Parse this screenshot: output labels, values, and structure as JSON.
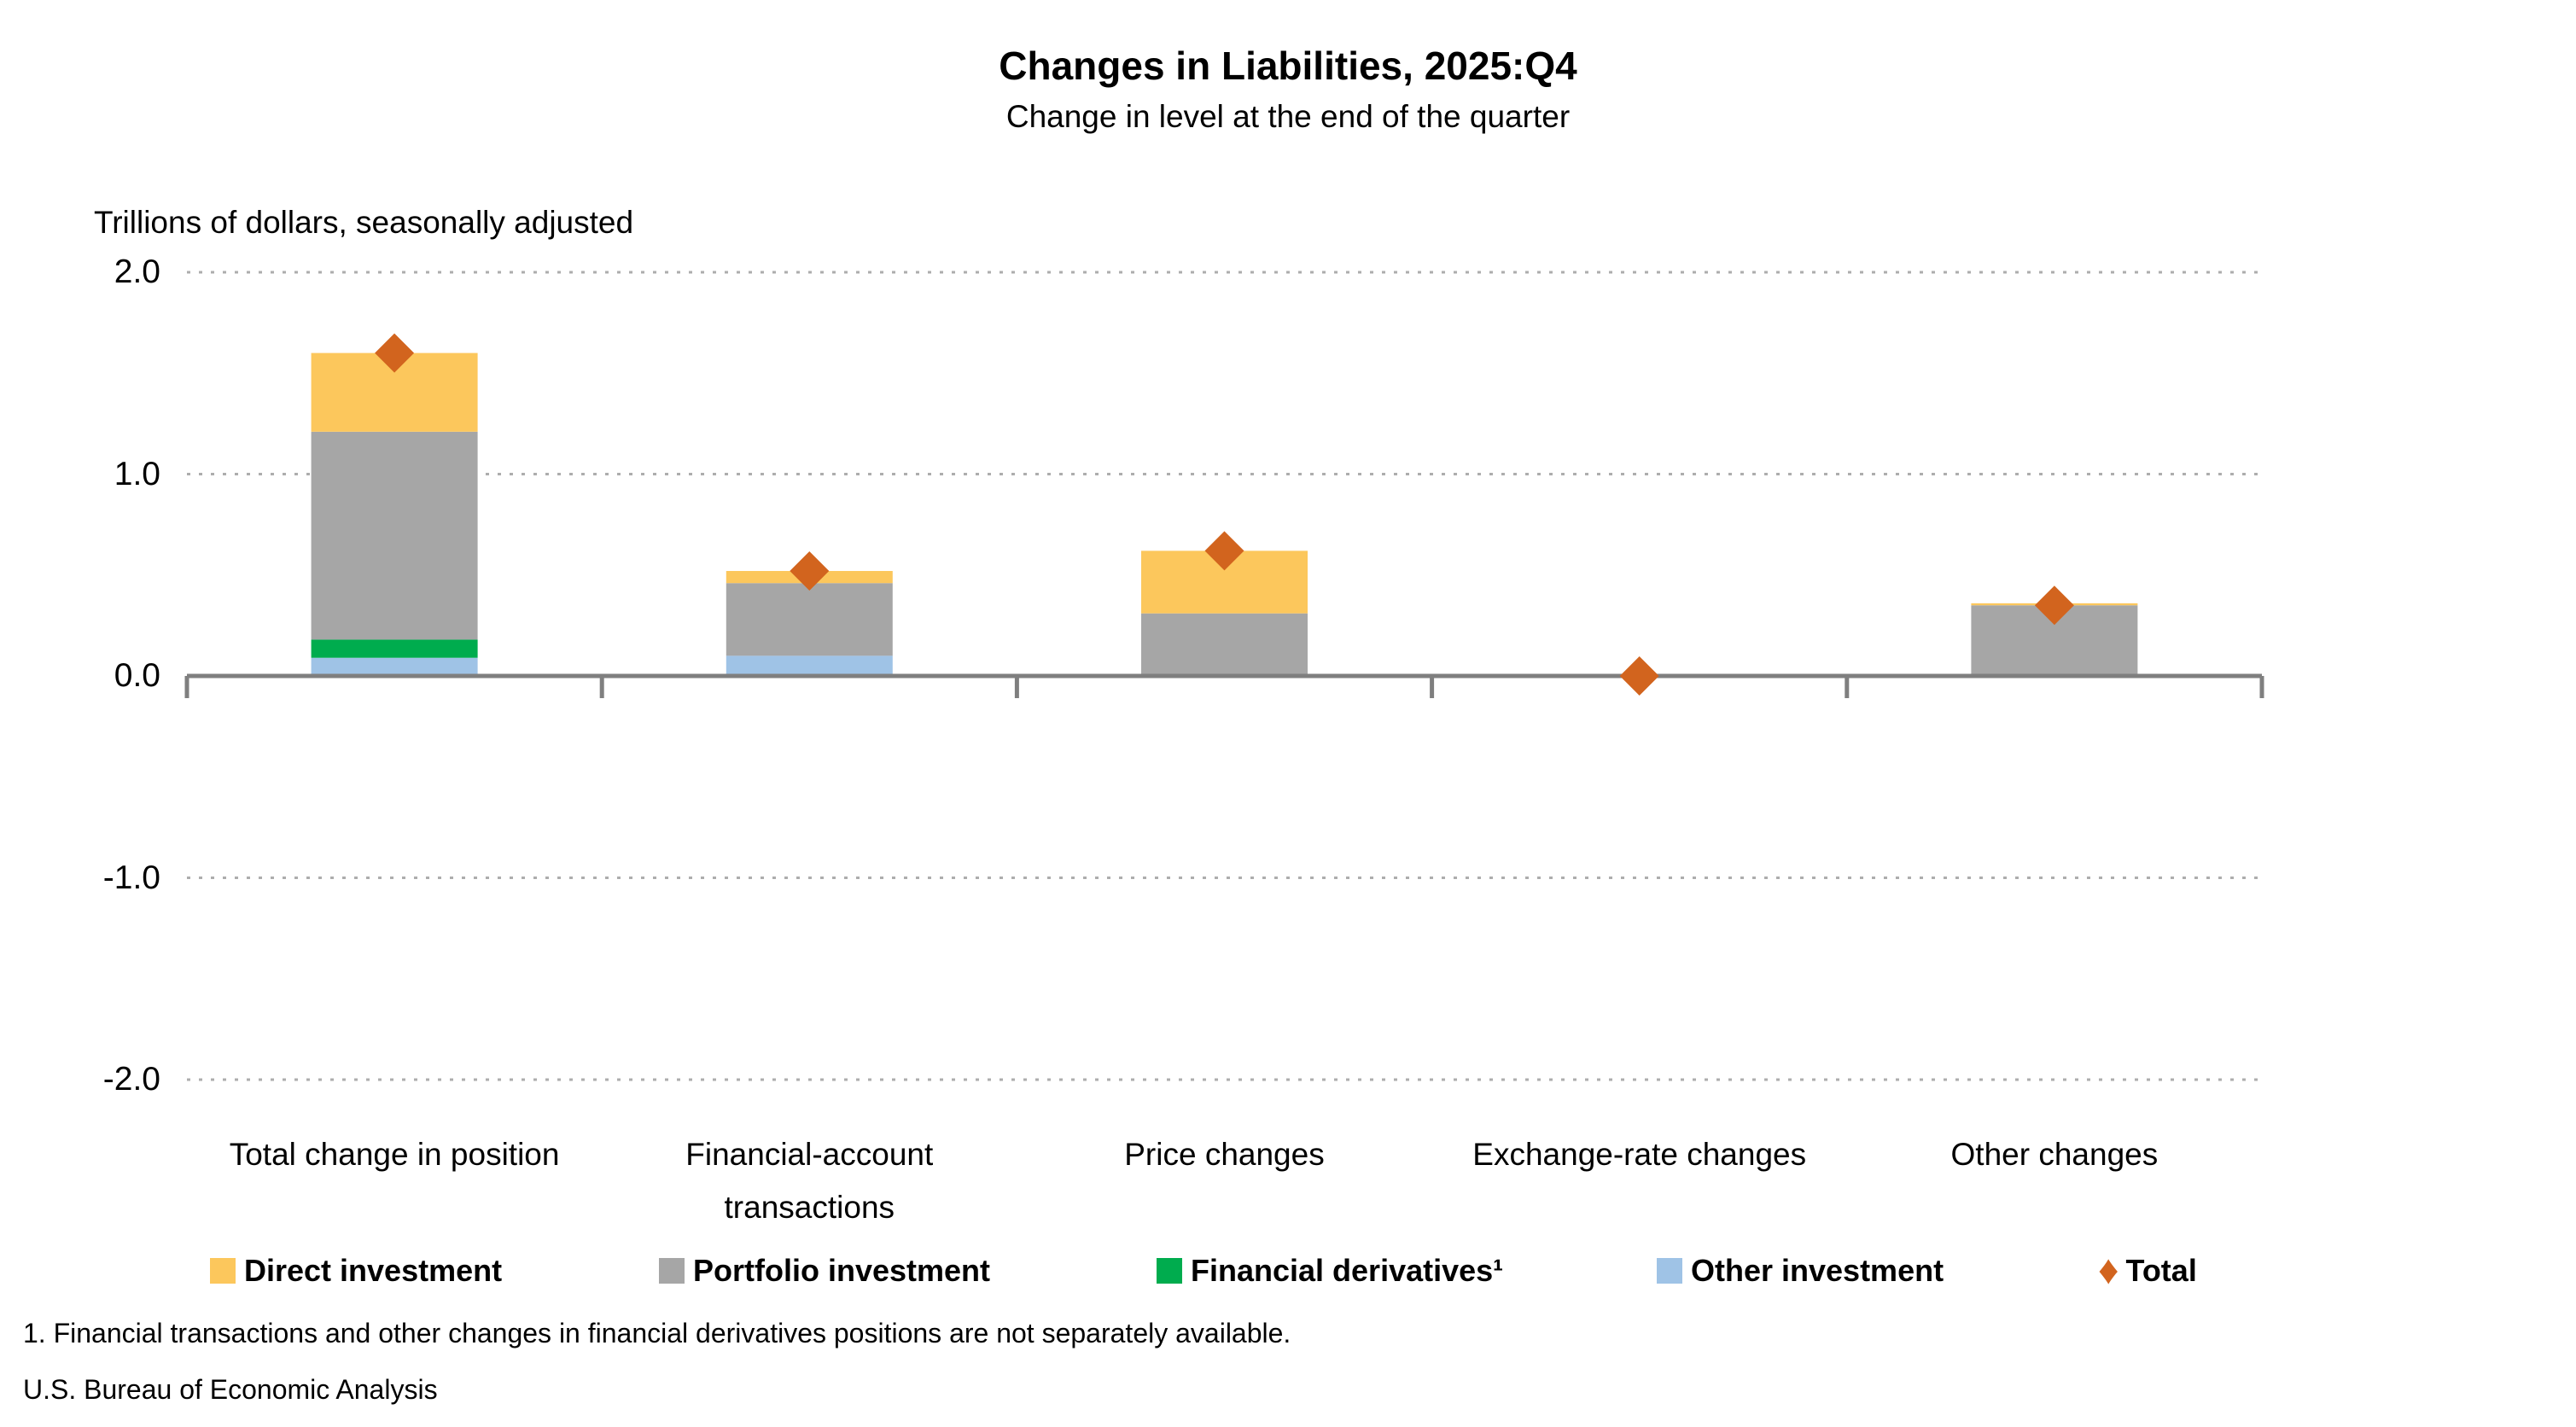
{
  "chart_data": {
    "type": "bar",
    "stacked": true,
    "title": "Changes in Liabilities, 2025:Q4",
    "subtitle": "Change in level at the end of the quarter",
    "units_label": "Trillions of dollars, seasonally adjusted",
    "categories": [
      "Total change in position",
      "Financial-account transactions",
      "Price changes",
      "Exchange-rate changes",
      "Other changes"
    ],
    "series": [
      {
        "name": "Direct investment",
        "color": "#FCC75C",
        "values": [
          0.39,
          0.06,
          0.31,
          0.0,
          0.01
        ]
      },
      {
        "name": "Portfolio investment",
        "color": "#A6A6A6",
        "values": [
          1.03,
          0.36,
          0.31,
          0.0,
          0.35
        ]
      },
      {
        "name": "Financial derivatives¹",
        "color": "#00AC4E",
        "values": [
          0.09,
          0.0,
          0.0,
          0.0,
          0.0
        ]
      },
      {
        "name": "Other investment",
        "color": "#9FC3E6",
        "values": [
          0.09,
          0.1,
          0.0,
          -0.01,
          -0.01
        ]
      }
    ],
    "total_series": {
      "name": "Total",
      "marker": "diamond",
      "color": "#D2641E",
      "values": [
        1.6,
        0.52,
        0.62,
        0.0,
        0.35
      ]
    },
    "stack_note": "stack order bottom-to-top: Other investment, Financial derivatives, Portfolio investment, Direct investment",
    "ylim": [
      -2.0,
      2.0
    ],
    "yticks": [
      "2.0",
      "1.0",
      "0.0",
      "-1.0",
      "-2.0"
    ],
    "grid": "dotted horizontal gridlines at non-zero ticks, solid gray zero axis with downward boundary ticks",
    "legend_position": "bottom",
    "axis_color": "#7F7F7F",
    "gridline_color": "#ADADAD",
    "footnote": "1. Financial transactions and other changes in financial derivatives positions are not separately available.",
    "source": "U.S. Bureau of Economic Analysis"
  }
}
